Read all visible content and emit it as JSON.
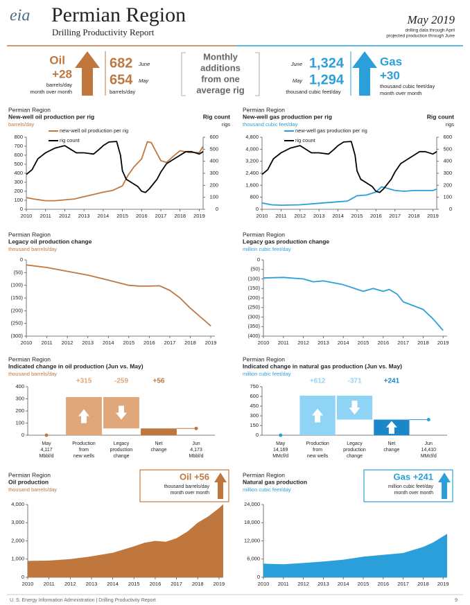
{
  "header": {
    "logo": "eia",
    "title": "Permian Region",
    "subtitle": "Drilling Productivity Report",
    "date": "May 2019",
    "notes": [
      "drilling data through April",
      "projected production through June"
    ]
  },
  "banner": {
    "oil": {
      "name": "Oil",
      "change": "+28",
      "unit": "barrels/day",
      "period": "month over month"
    },
    "oil_values": {
      "june": "682",
      "june_label": "June",
      "may": "654",
      "may_label": "May",
      "unit": "barrels/day"
    },
    "middle": [
      "Monthly",
      "additions",
      "from one",
      "average rig"
    ],
    "gas_values": {
      "june": "1,324",
      "june_label": "June",
      "may": "1,294",
      "may_label": "May",
      "unit": "thousand cubic feet/day"
    },
    "gas": {
      "name": "Gas",
      "change": "+30",
      "unit": "thousand cubic feet/day",
      "period": "month over month"
    }
  },
  "chart_data": [
    {
      "type": "line",
      "region": "Permian Region",
      "title": "New-well oil production per rig",
      "y_label": "barrels/day",
      "y2_title": "Rig count",
      "y2_label": "rigs",
      "color": "#c0773e",
      "legend": "top-left",
      "xlim": [
        2010,
        2019.2
      ],
      "xticks": [
        2010,
        2011,
        2012,
        2013,
        2014,
        2015,
        2016,
        2017,
        2018,
        2019
      ],
      "ylim": [
        0,
        800
      ],
      "yticks": [
        0,
        100,
        200,
        300,
        400,
        500,
        600,
        700,
        800
      ],
      "y2lim": [
        0,
        600
      ],
      "y2ticks": [
        0,
        100,
        200,
        300,
        400,
        500,
        600
      ],
      "series": [
        {
          "name": "new-well oil production per rig",
          "color": "#c0773e",
          "x": [
            2010,
            2010.5,
            2011,
            2011.5,
            2012,
            2012.5,
            2013,
            2013.5,
            2014,
            2014.5,
            2015,
            2015.3,
            2015.6,
            2016,
            2016.3,
            2016.5,
            2016.8,
            2017,
            2017.3,
            2017.6,
            2018,
            2018.5,
            2019,
            2019.2
          ],
          "values": [
            130,
            110,
            95,
            95,
            105,
            115,
            140,
            165,
            190,
            210,
            260,
            380,
            470,
            560,
            750,
            740,
            620,
            540,
            520,
            580,
            650,
            630,
            630,
            700
          ]
        },
        {
          "name": "rig count",
          "color": "#000000",
          "axis": "y2",
          "x": [
            2010,
            2010.3,
            2010.6,
            2011,
            2011.5,
            2012,
            2012.3,
            2012.6,
            2013,
            2013.5,
            2013.8,
            2014,
            2014.3,
            2014.7,
            2014.9,
            2015,
            2015.2,
            2015.5,
            2015.8,
            2016,
            2016.2,
            2016.4,
            2016.8,
            2017,
            2017.3,
            2017.6,
            2018,
            2018.3,
            2018.6,
            2019,
            2019.2
          ],
          "values": [
            290,
            330,
            420,
            470,
            510,
            530,
            500,
            470,
            470,
            460,
            500,
            530,
            560,
            565,
            450,
            320,
            250,
            220,
            190,
            150,
            140,
            170,
            250,
            310,
            380,
            410,
            450,
            480,
            480,
            460,
            480
          ]
        }
      ]
    },
    {
      "type": "line",
      "region": "Permian Region",
      "title": "New-well gas production per rig",
      "y_label": "thousand cubic feet/day",
      "y2_title": "Rig count",
      "y2_label": "rigs",
      "color": "#2b9fd9",
      "legend": "top-left",
      "xlim": [
        2010,
        2019.2
      ],
      "xticks": [
        2010,
        2011,
        2012,
        2013,
        2014,
        2015,
        2016,
        2017,
        2018,
        2019
      ],
      "ylim": [
        0,
        4800
      ],
      "yticks": [
        0,
        800,
        {
          "value": 1600,
          "label": "1,600"
        },
        {
          "value": 2400,
          "label": "2,400"
        },
        {
          "value": 3200,
          "label": "3,200"
        },
        {
          "value": 4000,
          "label": "4,000"
        },
        {
          "value": 4800,
          "label": "4,800"
        }
      ],
      "y2lim": [
        0,
        600
      ],
      "y2ticks": [
        0,
        100,
        200,
        300,
        400,
        500,
        600
      ],
      "series": [
        {
          "name": "new-well gas production per rig",
          "color": "#2b9fd9",
          "x": [
            2010,
            2010.5,
            2011,
            2012,
            2013,
            2014,
            2014.5,
            2015,
            2015.5,
            2016,
            2016.3,
            2016.6,
            2017,
            2017.5,
            2018,
            2019,
            2019.2
          ],
          "values": [
            420,
            300,
            270,
            300,
            400,
            500,
            550,
            900,
            950,
            1150,
            1500,
            1400,
            1250,
            1200,
            1250,
            1250,
            1350
          ]
        },
        {
          "name": "rig count",
          "color": "#000000",
          "axis": "y2",
          "x": [
            2010,
            2010.3,
            2010.6,
            2011,
            2011.5,
            2012,
            2012.3,
            2012.6,
            2013,
            2013.5,
            2013.8,
            2014,
            2014.3,
            2014.7,
            2014.9,
            2015,
            2015.2,
            2015.5,
            2015.8,
            2016,
            2016.2,
            2016.4,
            2016.8,
            2017,
            2017.3,
            2017.6,
            2018,
            2018.3,
            2018.6,
            2019,
            2019.2
          ],
          "values": [
            290,
            330,
            420,
            470,
            510,
            530,
            500,
            470,
            470,
            460,
            500,
            530,
            560,
            565,
            450,
            320,
            250,
            220,
            190,
            150,
            140,
            170,
            250,
            310,
            380,
            410,
            450,
            480,
            480,
            460,
            480
          ]
        }
      ]
    },
    {
      "type": "line",
      "region": "Permian Region",
      "title": "Legacy oil production change",
      "y_label": "thousand barrels/day",
      "color": "#c0773e",
      "xlim": [
        2010,
        2019.2
      ],
      "xticks": [
        2010,
        2011,
        2012,
        2013,
        2014,
        2015,
        2016,
        2017,
        2018,
        2019
      ],
      "ylim": [
        -300,
        0
      ],
      "yticks": [
        0,
        {
          "value": -50,
          "label": "(50)"
        },
        {
          "value": -100,
          "label": "(100)"
        },
        {
          "value": -150,
          "label": "(150)"
        },
        {
          "value": -200,
          "label": "(200)"
        },
        {
          "value": -250,
          "label": "(250)"
        },
        {
          "value": -300,
          "label": "(300)"
        }
      ],
      "series": [
        {
          "color": "#c0773e",
          "x": [
            2010,
            2011,
            2012,
            2013,
            2014,
            2015,
            2015.5,
            2016,
            2016.5,
            2017,
            2017.5,
            2018,
            2018.5,
            2019
          ],
          "values": [
            -20,
            -30,
            -45,
            -60,
            -80,
            -100,
            -103,
            -103,
            -102,
            -120,
            -150,
            -190,
            -225,
            -260
          ]
        }
      ]
    },
    {
      "type": "line",
      "region": "Permian Region",
      "title": "Legacy gas production change",
      "y_label": "million cubic feet/day",
      "color": "#2b9fd9",
      "xlim": [
        2010,
        2019.2
      ],
      "xticks": [
        2010,
        2011,
        2012,
        2013,
        2014,
        2015,
        2016,
        2017,
        2018,
        2019
      ],
      "ylim": [
        -400,
        0
      ],
      "yticks": [
        0,
        {
          "value": -50,
          "label": "(50)"
        },
        {
          "value": -100,
          "label": "(100)"
        },
        {
          "value": -150,
          "label": "(150)"
        },
        {
          "value": -200,
          "label": "(200)"
        },
        {
          "value": -250,
          "label": "(250)"
        },
        {
          "value": -300,
          "label": "(300)"
        },
        {
          "value": -350,
          "label": "(350)"
        },
        {
          "value": -400,
          "label": "(400)"
        }
      ],
      "series": [
        {
          "color": "#2b9fd9",
          "x": [
            2010,
            2011,
            2012,
            2012.5,
            2013,
            2014,
            2015,
            2015.5,
            2016,
            2016.3,
            2016.7,
            2017,
            2018,
            2018.5,
            2019
          ],
          "values": [
            -95,
            -92,
            -100,
            -115,
            -110,
            -130,
            -165,
            -150,
            -165,
            -155,
            -180,
            -220,
            -260,
            -310,
            -370
          ]
        }
      ]
    },
    {
      "type": "waterfall",
      "region": "Permian Region",
      "title": "Indicated change in oil production (Jun vs. May)",
      "y_label": "thousand barrels/day",
      "color": "#c0773e",
      "bar_color": "#e0a77a",
      "net_color": "#c0773e",
      "marker_color": "#c0773e",
      "ylim": [
        0,
        400
      ],
      "yticks": [
        0,
        100,
        200,
        300,
        400
      ],
      "categories": [
        [
          "May",
          "4,117",
          "Mbbl/d"
        ],
        [
          "Production",
          "from",
          "new wells"
        ],
        [
          "Legacy",
          "production",
          "change"
        ],
        [
          "Net",
          "change"
        ],
        [
          "Jun",
          "4,173",
          "Mbbl/d"
        ]
      ],
      "values": [
        0,
        315,
        -259,
        56,
        56
      ],
      "value_labels": [
        null,
        "+315",
        "-259",
        "+56",
        null
      ]
    },
    {
      "type": "waterfall",
      "region": "Permian Region",
      "title": "Indicated change in natural gas production (Jun vs. May)",
      "y_label": "million cubic feet/day",
      "color": "#2b9fd9",
      "bar_color": "#8fd4f5",
      "net_color": "#1b87c9",
      "marker_color": "#2b9fd9",
      "ylim": [
        0,
        750
      ],
      "yticks": [
        0,
        150,
        300,
        450,
        600,
        750
      ],
      "categories": [
        [
          "May",
          "14,169",
          "MMcf/d"
        ],
        [
          "Production",
          "from",
          "new wells"
        ],
        [
          "Legacy",
          "production",
          "change"
        ],
        [
          "Net",
          "change"
        ],
        [
          "Jun",
          "14,410",
          "MMcf/d"
        ]
      ],
      "values": [
        0,
        612,
        -371,
        241,
        241
      ],
      "value_labels": [
        null,
        "+612",
        "-371",
        "+241",
        null
      ]
    },
    {
      "type": "area",
      "region": "Permian Region",
      "title": "Oil production",
      "y_label": "thousand barrels/day",
      "color": "#c0773e",
      "box": {
        "title": "Oil +56",
        "lines": [
          "thousand barrels/day",
          "month over month"
        ]
      },
      "xlim": [
        2010,
        2019.2
      ],
      "xticks": [
        2010,
        2011,
        2012,
        2013,
        2014,
        2015,
        2016,
        2017,
        2018,
        2019
      ],
      "ylim": [
        0,
        4000
      ],
      "yticks": [
        0,
        {
          "value": 1000,
          "label": "1,000"
        },
        {
          "value": 2000,
          "label": "2,000"
        },
        {
          "value": 3000,
          "label": "3,000"
        },
        {
          "value": 4000,
          "label": "4,000"
        }
      ],
      "series": [
        {
          "color": "#c0773e",
          "x": [
            2010,
            2011,
            2012,
            2013,
            2014,
            2015,
            2015.5,
            2016,
            2016.5,
            2017,
            2017.5,
            2018,
            2018.5,
            2019,
            2019.2
          ],
          "values": [
            900,
            920,
            1000,
            1150,
            1350,
            1700,
            1900,
            2000,
            1950,
            2150,
            2500,
            3000,
            3350,
            3800,
            4020
          ]
        }
      ]
    },
    {
      "type": "area",
      "region": "Permian Region",
      "title": "Natural gas production",
      "y_label": "million cubic feet/day",
      "color": "#2b9fd9",
      "box": {
        "title": "Gas +241",
        "lines": [
          "million cubic feet/day",
          "month over month"
        ]
      },
      "xlim": [
        2010,
        2019.2
      ],
      "xticks": [
        2010,
        2011,
        2012,
        2013,
        2014,
        2015,
        2016,
        2017,
        2018,
        2019
      ],
      "ylim": [
        0,
        24000
      ],
      "yticks": [
        0,
        {
          "value": 6000,
          "label": "6,000"
        },
        {
          "value": 12000,
          "label": "12,000"
        },
        {
          "value": 18000,
          "label": "18,000"
        },
        {
          "value": 24000,
          "label": "24,000"
        }
      ],
      "series": [
        {
          "color": "#2b9fd9",
          "x": [
            2010,
            2011,
            2012,
            2013,
            2014,
            2015,
            2016,
            2017,
            2018,
            2018.5,
            2019,
            2019.2
          ],
          "values": [
            4500,
            4300,
            4700,
            5200,
            5800,
            6800,
            7400,
            8000,
            10000,
            11500,
            13500,
            14300
          ]
        }
      ]
    }
  ],
  "footer": {
    "text": "U. S. Energy Information Administration  |  Drilling Productivity Report",
    "page": "9"
  }
}
